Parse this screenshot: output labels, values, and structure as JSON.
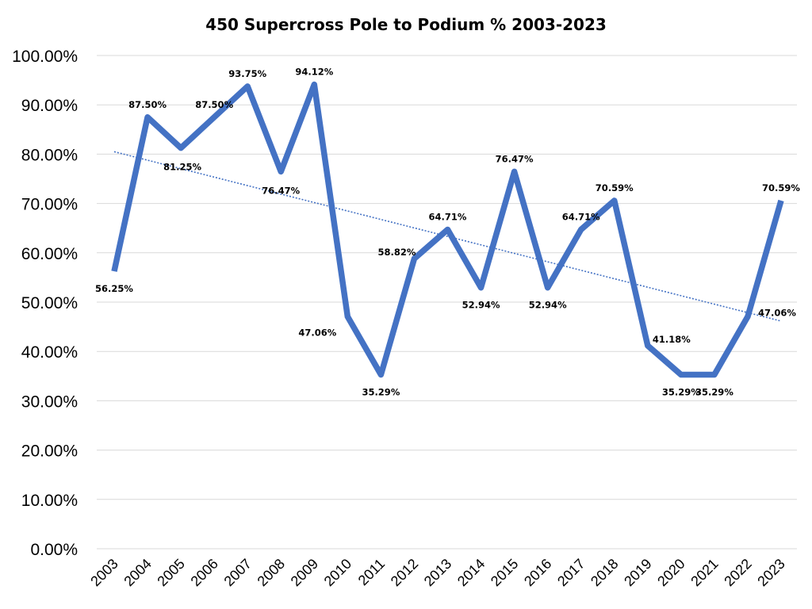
{
  "chart_data": {
    "type": "line",
    "title": "450 Supercross Pole to Podium % 2003-2023",
    "xlabel": "",
    "ylabel": "",
    "ylim": [
      0,
      100
    ],
    "grid": true,
    "legend": "none",
    "y_ticks": [
      "0.00%",
      "10.00%",
      "20.00%",
      "30.00%",
      "40.00%",
      "50.00%",
      "60.00%",
      "70.00%",
      "80.00%",
      "90.00%",
      "100.00%"
    ],
    "categories": [
      "2003",
      "2004",
      "2005",
      "2006",
      "2007",
      "2008",
      "2009",
      "2010",
      "2011",
      "2012",
      "2013",
      "2014",
      "2015",
      "2016",
      "2017",
      "2018",
      "2019",
      "2020",
      "2021",
      "2022",
      "2023"
    ],
    "series": [
      {
        "name": "Pole to Podium %",
        "color": "#4472C4",
        "values": [
          56.25,
          87.5,
          81.25,
          87.5,
          93.75,
          76.47,
          94.12,
          47.06,
          35.29,
          58.82,
          64.71,
          52.94,
          76.47,
          52.94,
          64.71,
          70.59,
          41.18,
          35.29,
          35.29,
          47.06,
          70.59
        ],
        "labels": [
          "56.25%",
          "87.50%",
          "81.25%",
          "87.50%",
          "93.75%",
          "76.47%",
          "94.12%",
          "47.06%",
          "35.29%",
          "58.82%",
          "64.71%",
          "52.94%",
          "76.47%",
          "52.94%",
          "64.71%",
          "70.59%",
          "41.18%",
          "35.29%",
          "35.29%",
          "47.06%",
          "70.59%"
        ]
      }
    ],
    "trendline": {
      "type": "linear",
      "style": "dotted",
      "color": "#4472C4"
    }
  }
}
